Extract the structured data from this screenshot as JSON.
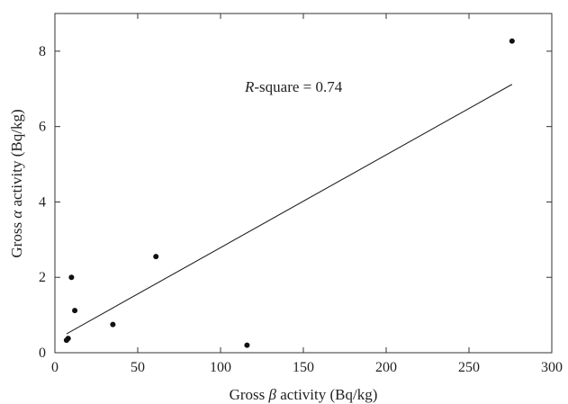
{
  "chart_data": {
    "type": "scatter",
    "title": "",
    "xlabel_parts": [
      "Gross ",
      "β",
      " activity (Bq/kg)"
    ],
    "ylabel_parts": [
      "Gross ",
      "α",
      " activity (Bq/kg)"
    ],
    "xlim": [
      0,
      300
    ],
    "ylim": [
      0,
      9
    ],
    "x_ticks": [
      0,
      50,
      100,
      150,
      200,
      250,
      300
    ],
    "y_ticks": [
      0,
      2,
      4,
      6,
      8
    ],
    "grid": false,
    "points": [
      {
        "x": 7,
        "y": 0.33
      },
      {
        "x": 8,
        "y": 0.38
      },
      {
        "x": 10,
        "y": 2.0
      },
      {
        "x": 12,
        "y": 1.12
      },
      {
        "x": 35,
        "y": 0.75
      },
      {
        "x": 61,
        "y": 2.55
      },
      {
        "x": 116,
        "y": 0.2
      },
      {
        "x": 276,
        "y": 8.27
      }
    ],
    "fit_line": {
      "x": [
        7,
        276
      ],
      "y": [
        0.5,
        7.12
      ]
    },
    "annotation_parts": [
      "R",
      "-square = 0.74"
    ]
  }
}
